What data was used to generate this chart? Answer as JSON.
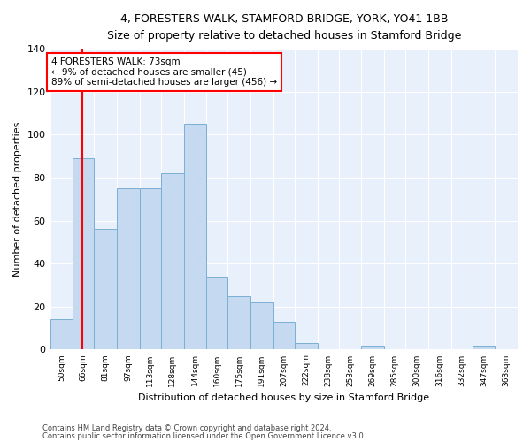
{
  "title": "4, FORESTERS WALK, STAMFORD BRIDGE, YORK, YO41 1BB",
  "subtitle": "Size of property relative to detached houses in Stamford Bridge",
  "xlabel": "Distribution of detached houses by size in Stamford Bridge",
  "ylabel": "Number of detached properties",
  "bar_color": "#c5d9f0",
  "bar_edge_color": "#7bafd4",
  "background_color": "#e8f0fb",
  "grid_color": "#ffffff",
  "red_line_x": 73,
  "bin_lefts": [
    50,
    66,
    81,
    97,
    113,
    128,
    144,
    160,
    175,
    191,
    207,
    222,
    238,
    253,
    269,
    285,
    300,
    316,
    332,
    347,
    363
  ],
  "bin_widths": [
    16,
    15,
    16,
    16,
    15,
    16,
    16,
    15,
    16,
    16,
    15,
    16,
    15,
    16,
    16,
    15,
    16,
    16,
    15,
    16,
    16
  ],
  "bin_labels": [
    "50sqm",
    "66sqm",
    "81sqm",
    "97sqm",
    "113sqm",
    "128sqm",
    "144sqm",
    "160sqm",
    "175sqm",
    "191sqm",
    "207sqm",
    "222sqm",
    "238sqm",
    "253sqm",
    "269sqm",
    "285sqm",
    "300sqm",
    "316sqm",
    "332sqm",
    "347sqm",
    "363sqm"
  ],
  "values": [
    14,
    89,
    56,
    75,
    75,
    82,
    105,
    34,
    25,
    22,
    13,
    3,
    0,
    0,
    2,
    0,
    0,
    0,
    0,
    2,
    0
  ],
  "annotation_line1": "4 FORESTERS WALK: 73sqm",
  "annotation_line2": "← 9% of detached houses are smaller (45)",
  "annotation_line3": "89% of semi-detached houses are larger (456) →",
  "footnote1": "Contains HM Land Registry data © Crown copyright and database right 2024.",
  "footnote2": "Contains public sector information licensed under the Open Government Licence v3.0.",
  "ylim": [
    0,
    140
  ],
  "xlim": [
    50,
    379
  ],
  "figsize": [
    6.0,
    5.0
  ],
  "dpi": 100
}
